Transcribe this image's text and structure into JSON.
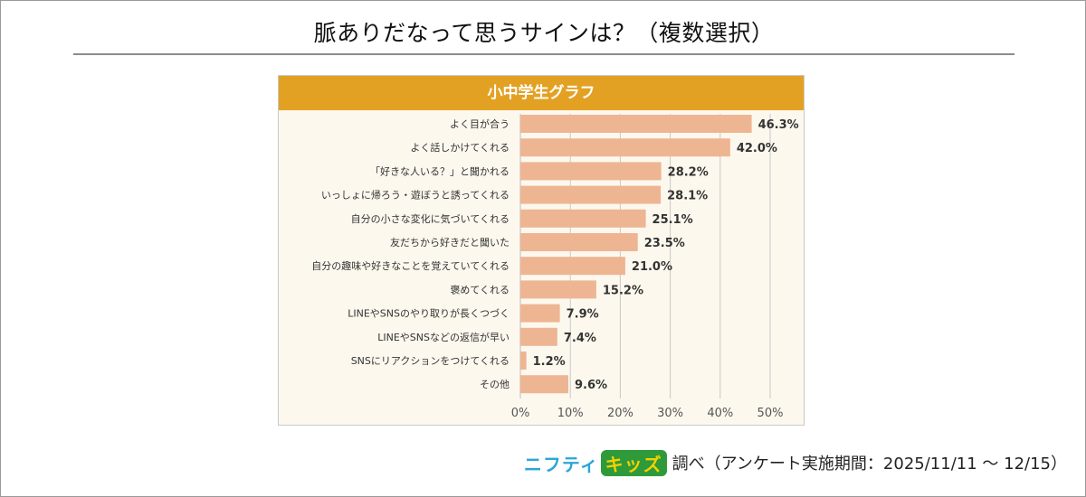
{
  "title": "脈ありだなって思うサインは？（複数選択）",
  "chart_title": "小中学生グラフ",
  "colors": {
    "header": "#e3a123",
    "bar": "#eeb593",
    "panel_bg": "#fdf8ee",
    "grid": "#c8c8c8"
  },
  "chart_data": {
    "type": "bar",
    "orientation": "horizontal",
    "title": "小中学生グラフ",
    "categories": [
      "よく目が合う",
      "よく話しかけてくれる",
      "「好きな人いる？」と聞かれる",
      "いっしょに帰ろう・遊ぼうと誘ってくれる",
      "自分の小さな変化に気づいてくれる",
      "友だちから好きだと聞いた",
      "自分の趣味や好きなことを覚えていてくれる",
      "褒めてくれる",
      "LINEやSNSのやり取りが長くつづく",
      "LINEやSNSなどの返信が早い",
      "SNSにリアクションをつけてくれる",
      "その他"
    ],
    "values": [
      46.3,
      42.0,
      28.2,
      28.1,
      25.1,
      23.5,
      21.0,
      15.2,
      7.9,
      7.4,
      1.2,
      9.6
    ],
    "value_labels": [
      "46.3%",
      "42.0%",
      "28.2%",
      "28.1%",
      "25.1%",
      "23.5%",
      "21.0%",
      "15.2%",
      "7.9%",
      "7.4%",
      "1.2%",
      "9.6%"
    ],
    "xlim": [
      0,
      50
    ],
    "ticks": [
      0,
      10,
      20,
      30,
      40,
      50
    ],
    "tick_labels": [
      "0%",
      "10%",
      "20%",
      "30%",
      "40%",
      "50%"
    ],
    "grid": true,
    "xlabel": "",
    "ylabel": ""
  },
  "footer": {
    "brand_nifty": "ニフティ",
    "brand_kids": "キッズ",
    "text": "調べ（アンケート実施期間：2025/11/11 ～ 12/15）"
  }
}
